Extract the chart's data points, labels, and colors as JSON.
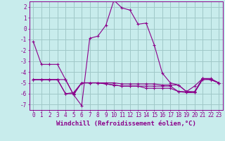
{
  "background_color": "#c8ecec",
  "grid_color": "#a0c8c8",
  "line_color": "#8b008b",
  "marker_color": "#8b008b",
  "xlabel": "Windchill (Refroidissement éolien,°C)",
  "xlim": [
    -0.5,
    23.5
  ],
  "ylim": [
    -7.5,
    2.5
  ],
  "yticks": [
    -7,
    -6,
    -5,
    -4,
    -3,
    -2,
    -1,
    0,
    1,
    2
  ],
  "xticks": [
    0,
    1,
    2,
    3,
    4,
    5,
    6,
    7,
    8,
    9,
    10,
    11,
    12,
    13,
    14,
    15,
    16,
    17,
    18,
    19,
    20,
    21,
    22,
    23
  ],
  "series1_x": [
    0,
    1,
    2,
    3,
    4,
    5,
    6,
    7,
    8,
    9,
    10,
    11,
    12,
    13,
    14,
    15,
    16,
    17,
    18,
    19,
    20,
    21,
    22,
    23
  ],
  "series1_y": [
    -1.2,
    -3.3,
    -3.3,
    -3.3,
    -4.7,
    -6.1,
    -7.1,
    -0.9,
    -0.7,
    0.3,
    2.6,
    1.9,
    1.7,
    0.4,
    0.5,
    -1.5,
    -4.1,
    -5.0,
    -5.2,
    -5.8,
    -5.9,
    -4.6,
    -4.7,
    -5.0
  ],
  "series2_x": [
    0,
    1,
    2,
    3,
    4,
    5,
    6,
    7,
    8,
    9,
    10,
    11,
    12,
    13,
    14,
    15,
    16,
    17,
    18,
    19,
    20,
    21,
    22,
    23
  ],
  "series2_y": [
    -4.7,
    -4.7,
    -4.7,
    -4.7,
    -4.7,
    -6.1,
    -5.0,
    -5.0,
    -5.0,
    -5.0,
    -5.0,
    -5.1,
    -5.1,
    -5.1,
    -5.1,
    -5.1,
    -5.2,
    -5.2,
    -5.2,
    -5.8,
    -5.3,
    -4.6,
    -4.7,
    -5.0
  ],
  "series3_x": [
    0,
    1,
    2,
    3,
    4,
    5,
    6,
    7,
    8,
    9,
    10,
    11,
    12,
    13,
    14,
    15,
    16,
    17,
    18,
    19,
    20,
    21,
    22,
    23
  ],
  "series3_y": [
    -4.7,
    -4.7,
    -4.7,
    -4.7,
    -6.0,
    -6.0,
    -5.0,
    -5.0,
    -5.0,
    -5.1,
    -5.2,
    -5.3,
    -5.3,
    -5.3,
    -5.3,
    -5.3,
    -5.3,
    -5.3,
    -5.8,
    -5.8,
    -5.8,
    -4.6,
    -4.6,
    -5.0
  ],
  "series4_x": [
    0,
    1,
    2,
    3,
    4,
    5,
    6,
    7,
    8,
    9,
    10,
    11,
    12,
    13,
    14,
    15,
    16,
    17,
    18,
    19,
    20,
    21,
    22,
    23
  ],
  "series4_y": [
    -4.7,
    -4.7,
    -4.7,
    -4.7,
    -6.0,
    -5.9,
    -5.0,
    -5.0,
    -5.0,
    -5.1,
    -5.2,
    -5.3,
    -5.3,
    -5.3,
    -5.5,
    -5.5,
    -5.5,
    -5.5,
    -5.8,
    -5.9,
    -5.9,
    -4.7,
    -4.7,
    -5.0
  ],
  "xlabel_fontsize": 6.5,
  "tick_fontsize": 5.5
}
